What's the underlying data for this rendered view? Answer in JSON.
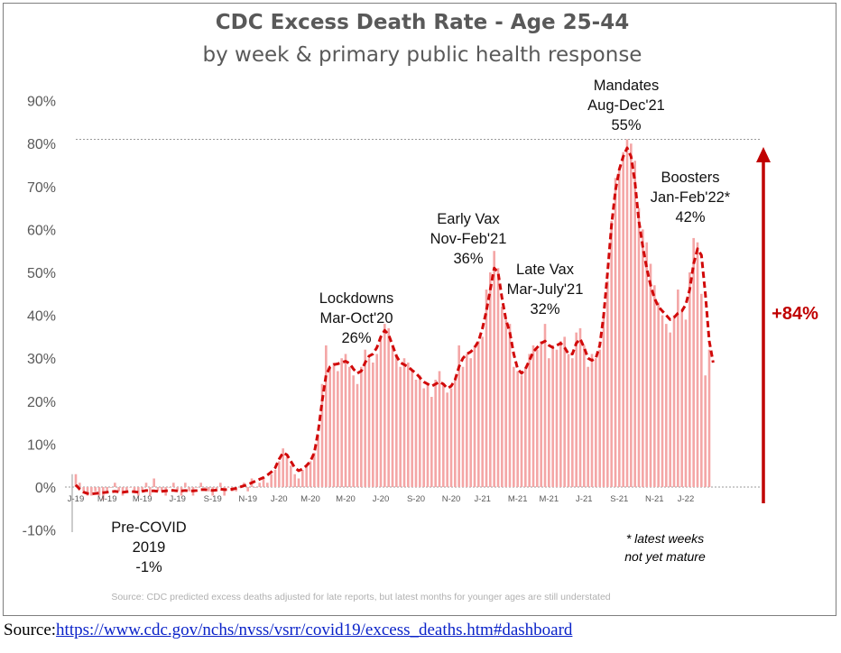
{
  "chart_data": {
    "type": "bar",
    "title": "CDC Excess Death Rate - Age 25-44",
    "subtitle": "by week & primary public health response",
    "ylim": [
      -10,
      90
    ],
    "yticks": [
      "-10%",
      "0%",
      "10%",
      "20%",
      "30%",
      "40%",
      "50%",
      "60%",
      "70%",
      "80%",
      "90%"
    ],
    "ytick_values": [
      -10,
      0,
      10,
      20,
      30,
      40,
      50,
      60,
      70,
      80,
      90
    ],
    "x_tick_labels": [
      "J-19",
      "M-19",
      "M-19",
      "J-19",
      "S-19",
      "N-19",
      "J-20",
      "M-20",
      "M-20",
      "J-20",
      "S-20",
      "N-20",
      "J-21",
      "M-21",
      "M-21",
      "J-21",
      "S-21",
      "N-21",
      "J-22"
    ],
    "x_tick_weeks": [
      0,
      8,
      17,
      26,
      35,
      44,
      52,
      60,
      69,
      78,
      87,
      96,
      104,
      113,
      121,
      130,
      139,
      148,
      156
    ],
    "series": [
      {
        "style": "bar",
        "color": "#f4a6a6",
        "values": [
          3,
          1,
          -1,
          -2,
          -2,
          -1,
          -2,
          -3,
          -1,
          0,
          1,
          -1,
          -2,
          -1,
          0,
          -1,
          -2,
          -1,
          1,
          -2,
          2,
          -1,
          -1,
          -2,
          0,
          1,
          -1,
          -2,
          1,
          -1,
          -2,
          0,
          1,
          0,
          -1,
          -2,
          -1,
          1,
          -2,
          0,
          -1,
          -1,
          0,
          1,
          -1,
          2,
          0,
          1,
          2,
          1,
          3,
          4,
          6,
          9,
          7,
          5,
          3,
          2,
          4,
          5,
          6,
          8,
          12,
          24,
          33,
          28,
          29,
          27,
          30,
          31,
          28,
          26,
          24,
          28,
          32,
          30,
          29,
          31,
          35,
          38,
          37,
          33,
          31,
          28,
          30,
          29,
          27,
          25,
          26,
          23,
          24,
          21,
          25,
          27,
          24,
          22,
          23,
          25,
          33,
          28,
          31,
          30,
          33,
          34,
          35,
          46,
          50,
          55,
          51,
          42,
          39,
          38,
          28,
          27,
          26,
          28,
          31,
          33,
          32,
          34,
          38,
          30,
          33,
          32,
          34,
          35,
          31,
          30,
          36,
          37,
          33,
          28,
          31,
          30,
          32,
          40,
          48,
          62,
          72,
          74,
          78,
          81,
          80,
          76,
          65,
          60,
          57,
          52,
          47,
          43,
          40,
          38,
          36,
          40,
          46,
          41,
          39,
          50,
          58,
          57,
          45,
          26,
          32
        ]
      },
      {
        "style": "dashed-line",
        "color": "#d10a0a",
        "values": [
          0.5,
          -0.5,
          -1.2,
          -1.5,
          -1.6,
          -1.5,
          -1.4,
          -1.3,
          -1.2,
          -1.1,
          -1.0,
          -1.1,
          -1.2,
          -1.1,
          -1.0,
          -1.1,
          -1.2,
          -1.0,
          -0.8,
          -0.9,
          -0.9,
          -1.0,
          -1.0,
          -0.9,
          -0.8,
          -0.8,
          -0.9,
          -0.9,
          -0.8,
          -0.9,
          -0.9,
          -0.8,
          -0.6,
          -0.6,
          -0.7,
          -0.8,
          -0.7,
          -0.5,
          -0.6,
          -0.6,
          -0.5,
          -0.3,
          0.0,
          0.3,
          0.6,
          1.0,
          1.4,
          1.8,
          2.2,
          2.8,
          3.5,
          4.5,
          6.5,
          8.0,
          7.5,
          6.0,
          4.5,
          3.8,
          4.2,
          5.0,
          6.0,
          8.0,
          13.0,
          20.0,
          26.0,
          28.0,
          28.5,
          28.7,
          29.0,
          29.3,
          28.8,
          27.5,
          26.5,
          27.0,
          29.0,
          30.5,
          31.0,
          32.5,
          35.0,
          36.5,
          35.5,
          33.0,
          30.5,
          29.0,
          28.5,
          28.0,
          27.2,
          26.5,
          25.5,
          24.5,
          24.0,
          23.5,
          24.0,
          24.5,
          24.0,
          23.0,
          23.5,
          25.0,
          28.0,
          30.0,
          31.0,
          31.5,
          32.5,
          34.0,
          37.0,
          41.0,
          46.0,
          51.0,
          50.0,
          44.0,
          39.0,
          36.0,
          31.0,
          27.5,
          26.5,
          27.5,
          29.5,
          31.5,
          32.5,
          33.5,
          34.0,
          33.0,
          32.5,
          33.0,
          33.5,
          32.5,
          31.0,
          31.0,
          33.5,
          34.5,
          32.5,
          30.0,
          29.5,
          30.0,
          33.0,
          40.0,
          50.0,
          61.0,
          69.0,
          74.0,
          77.0,
          79.0,
          77.0,
          71.0,
          62.0,
          56.0,
          51.0,
          47.0,
          44.0,
          42.0,
          41.0,
          40.0,
          39.0,
          39.5,
          40.5,
          41.0,
          42.5,
          46.0,
          52.0,
          55.5,
          54.0,
          45.0,
          34.0,
          29.0
        ]
      }
    ]
  },
  "annotations": [
    {
      "lines": [
        "Pre-COVID",
        "2019",
        "-1%"
      ]
    },
    {
      "lines": [
        "Lockdowns",
        "Mar-Oct'20",
        "26%"
      ]
    },
    {
      "lines": [
        "Early Vax",
        "Nov-Feb'21",
        "36%"
      ]
    },
    {
      "lines": [
        "Late Vax",
        "Mar-July'21",
        "32%"
      ]
    },
    {
      "lines": [
        "Mandates",
        "Aug-Dec'21",
        "55%"
      ]
    },
    {
      "lines": [
        "Boosters",
        "Jan-Feb'22*",
        "42%"
      ]
    }
  ],
  "increase_label": "+84%",
  "footnote_lines": [
    "* latest weeks",
    "not yet mature"
  ],
  "source_note": "Source: CDC predicted excess deaths adjusted for late reports, but latest months for younger ages are still understated",
  "source_prefix": "Source:",
  "source_link": "https://www.cdc.gov/nchs/nvss/vsrr/covid19/excess_deaths.htm#dashboard",
  "colors": {
    "bar": "#f4a6a6",
    "line": "#d10a0a",
    "arrow": "#c00000",
    "axis_text": "#595959"
  }
}
